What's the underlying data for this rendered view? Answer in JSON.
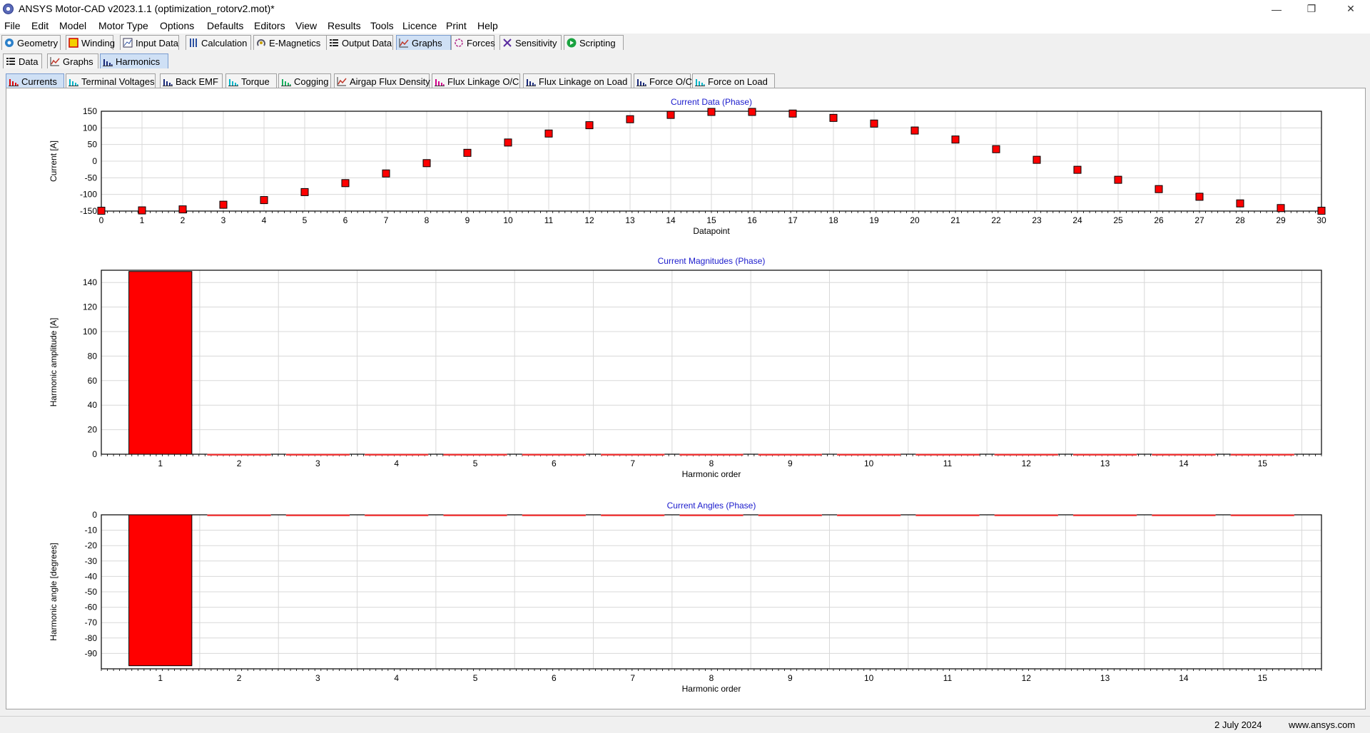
{
  "window": {
    "title": "ANSYS Motor-CAD v2023.1.1 (optimization_rotorv2.mot)*",
    "controls": [
      "minimize-icon",
      "restore-icon",
      "close-icon"
    ]
  },
  "menu": [
    "File",
    "Edit",
    "Model",
    "Motor Type",
    "Options",
    "Defaults",
    "Editors",
    "View",
    "Results",
    "Tools",
    "Licence",
    "Print",
    "Help"
  ],
  "main_tabs": [
    {
      "label": "Geometry",
      "icon": "geometry-icon"
    },
    {
      "label": "Winding",
      "icon": "winding-icon"
    },
    {
      "label": "Input Data",
      "icon": "input-data-icon"
    },
    {
      "label": "Calculation",
      "icon": "calculation-icon"
    },
    {
      "label": "E-Magnetics",
      "icon": "e-magnetics-icon"
    },
    {
      "label": "Output Data",
      "icon": "output-data-icon"
    },
    {
      "label": "Graphs",
      "icon": "graphs-icon",
      "active": true
    },
    {
      "label": "Forces",
      "icon": "forces-icon"
    },
    {
      "label": "Sensitivity",
      "icon": "sensitivity-icon"
    },
    {
      "label": "Scripting",
      "icon": "scripting-icon"
    }
  ],
  "sub_tabs": [
    {
      "label": "Data",
      "icon": "data-grid-icon"
    },
    {
      "label": "Graphs",
      "icon": "line-graph-icon"
    },
    {
      "label": "Harmonics",
      "icon": "harmonics-icon",
      "active": true
    }
  ],
  "harmonic_tabs": [
    {
      "label": "Currents",
      "icon": "bar-chart-red-icon",
      "active": true
    },
    {
      "label": "Terminal Voltages",
      "icon": "bar-chart-cyan-icon"
    },
    {
      "label": "Back EMF",
      "icon": "bar-chart-navy-icon"
    },
    {
      "label": "Torque",
      "icon": "bar-chart-cyan-icon"
    },
    {
      "label": "Cogging",
      "icon": "bar-chart-green-icon"
    },
    {
      "label": "Airgap Flux Density",
      "icon": "line-graph-icon"
    },
    {
      "label": "Flux Linkage O/C",
      "icon": "bar-chart-magenta-icon"
    },
    {
      "label": "Flux Linkage on Load",
      "icon": "bar-chart-navy-icon"
    },
    {
      "label": "Force O/C",
      "icon": "bar-chart-navy-icon"
    },
    {
      "label": "Force on Load",
      "icon": "bar-chart-cyan-icon"
    }
  ],
  "status": {
    "date": "2 July 2024",
    "website": "www.ansys.com"
  },
  "chart_data": [
    {
      "type": "scatter",
      "title": "Current Data (Phase)",
      "xlabel": "Datapoint",
      "ylabel": "Current [A]",
      "x": [
        0,
        1,
        2,
        3,
        4,
        5,
        6,
        7,
        8,
        9,
        10,
        11,
        12,
        13,
        14,
        15,
        16,
        17,
        18,
        19,
        20,
        21,
        22,
        23,
        24,
        25,
        26,
        27,
        28,
        29,
        30
      ],
      "y": [
        -149,
        -148,
        -145,
        -131,
        -117,
        -93,
        -66,
        -37,
        -6,
        25,
        56,
        83,
        108,
        126,
        139,
        148,
        148,
        143,
        130,
        113,
        92,
        65,
        36,
        4,
        -26,
        -56,
        -84,
        -107,
        -127,
        -141,
        -149
      ],
      "xlim": [
        0,
        30
      ],
      "ylim": [
        -150,
        150
      ],
      "yticks": [
        150,
        100,
        50,
        0,
        -50,
        -100,
        -150
      ],
      "xticks": [
        0,
        1,
        2,
        3,
        4,
        5,
        6,
        7,
        8,
        9,
        10,
        11,
        12,
        13,
        14,
        15,
        16,
        17,
        18,
        19,
        20,
        21,
        22,
        23,
        24,
        25,
        26,
        27,
        28,
        29,
        30
      ],
      "marker_color": "#ff0000",
      "grid": true
    },
    {
      "type": "bar",
      "title": "Current Magnitudes (Phase)",
      "xlabel": "Harmonic order",
      "ylabel": "Harmonic amplitude [A]",
      "categories": [
        "1",
        "2",
        "3",
        "4",
        "5",
        "6",
        "7",
        "8",
        "9",
        "10",
        "11",
        "12",
        "13",
        "14",
        "15"
      ],
      "values": [
        149,
        0,
        0,
        0,
        0,
        0,
        0,
        0,
        0,
        0,
        0,
        0,
        0,
        0,
        0
      ],
      "ylim": [
        0,
        150
      ],
      "yticks": [
        0,
        20,
        40,
        60,
        80,
        100,
        120,
        140
      ],
      "bar_color": "#ff0000",
      "grid": true
    },
    {
      "type": "bar",
      "title": "Current Angles (Phase)",
      "xlabel": "Harmonic order",
      "ylabel": "Harmonic angle [degrees]",
      "categories": [
        "1",
        "2",
        "3",
        "4",
        "5",
        "6",
        "7",
        "8",
        "9",
        "10",
        "11",
        "12",
        "13",
        "14",
        "15"
      ],
      "values": [
        -98,
        0,
        0,
        0,
        0,
        0,
        0,
        0,
        0,
        0,
        0,
        0,
        0,
        0,
        0
      ],
      "ylim": [
        -100,
        0
      ],
      "yticks": [
        0,
        -10,
        -20,
        -30,
        -40,
        -50,
        -60,
        -70,
        -80,
        -90
      ],
      "bar_color": "#ff0000",
      "grid": true
    }
  ]
}
